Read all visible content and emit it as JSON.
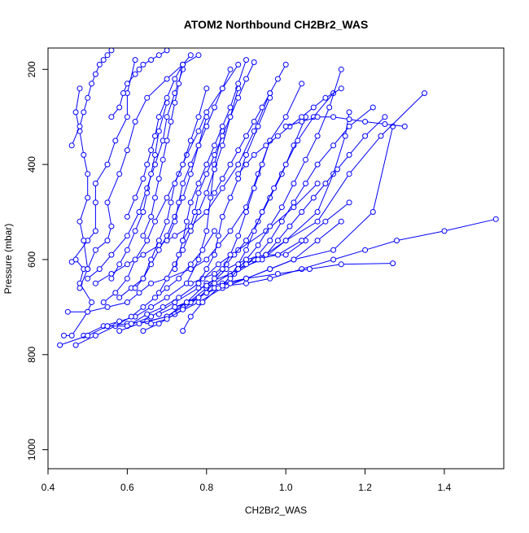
{
  "chart_data": {
    "type": "scatter",
    "title": "ATOM2 Northbound CH2Br2_WAS",
    "xlabel": "CH2Br2_WAS",
    "ylabel": "Pressure (mbar)",
    "xlim": [
      0.4,
      1.55
    ],
    "ylim": [
      1040,
      155
    ],
    "y_reversed": true,
    "x_ticks": [
      0.4,
      0.6,
      0.8,
      1.0,
      1.2,
      1.4
    ],
    "x_tick_labels": [
      "0.4",
      "0.6",
      "0.8",
      "1.0",
      "1.2",
      "1.4"
    ],
    "y_ticks": [
      200,
      400,
      600,
      800,
      1000
    ],
    "y_tick_labels": [
      "200",
      "400",
      "600",
      "800",
      "1000"
    ],
    "grid": false,
    "legend": "none",
    "series_color": "#0000ff",
    "marker": "open-circle",
    "connected": true,
    "series": [
      {
        "x": [
          0.44,
          0.46,
          0.5,
          0.51,
          0.48,
          0.49,
          0.47,
          0.46,
          0.5,
          0.52,
          0.52,
          0.52,
          0.55,
          0.57,
          0.6,
          0.6,
          0.62
        ],
        "y": [
          760,
          760,
          710,
          690,
          650,
          620,
          600,
          605,
          560,
          540,
          480,
          440,
          400,
          350,
          300,
          250,
          180
        ]
      },
      {
        "x": [
          0.45,
          0.5,
          0.55,
          0.6,
          0.63,
          0.66,
          0.7,
          0.76,
          0.8,
          0.83,
          0.86,
          0.9,
          0.93,
          0.96
        ],
        "y": [
          710,
          710,
          700,
          690,
          670,
          650,
          640,
          620,
          600,
          570,
          540,
          490,
          420,
          350
        ]
      },
      {
        "x": [
          0.49,
          0.54,
          0.58,
          0.62,
          0.66,
          0.7,
          0.75,
          0.78,
          0.8,
          0.81,
          0.82,
          0.84
        ],
        "y": [
          760,
          740,
          730,
          720,
          700,
          680,
          650,
          600,
          540,
          470,
          400,
          330
        ]
      },
      {
        "x": [
          0.43,
          0.5,
          0.55,
          0.6,
          0.65,
          0.7,
          0.74,
          0.8,
          0.85,
          0.9,
          0.95,
          1.0,
          1.05
        ],
        "y": [
          780,
          760,
          740,
          735,
          730,
          720,
          700,
          660,
          620,
          600,
          590,
          590,
          560
        ]
      },
      {
        "x": [
          0.47,
          0.52,
          0.57,
          0.61,
          0.64,
          0.67,
          0.7,
          0.73,
          0.76,
          0.79,
          0.82
        ],
        "y": [
          780,
          760,
          740,
          720,
          700,
          680,
          660,
          640,
          610,
          580,
          540
        ]
      },
      {
        "x": [
          0.55,
          0.6,
          0.66,
          0.72,
          0.78,
          0.84,
          0.9,
          0.96,
          1.02,
          1.08,
          1.14
        ],
        "y": [
          740,
          740,
          720,
          690,
          660,
          650,
          640,
          620,
          600,
          560,
          520
        ]
      },
      {
        "x": [
          0.58,
          0.63,
          0.7,
          0.75,
          0.8,
          0.86,
          0.92,
          0.98,
          1.04,
          1.1,
          1.16
        ],
        "y": [
          750,
          735,
          720,
          690,
          650,
          630,
          600,
          590,
          560,
          520,
          480
        ]
      },
      {
        "x": [
          0.61,
          0.65,
          0.69,
          0.73,
          0.78,
          0.83,
          0.88,
          0.95,
          1.02,
          1.08
        ],
        "y": [
          735,
          715,
          700,
          680,
          650,
          610,
          580,
          540,
          490,
          440
        ]
      },
      {
        "x": [
          0.64,
          0.68,
          0.72,
          0.78,
          0.84,
          0.9,
          0.96,
          1.02,
          1.12,
          1.22,
          1.27
        ],
        "y": [
          750,
          735,
          715,
          690,
          660,
          640,
          620,
          600,
          580,
          500,
          320
        ]
      },
      {
        "x": [
          0.66,
          0.7,
          0.74,
          0.78,
          0.82,
          0.88,
          0.94,
          1.0,
          1.08,
          1.16,
          1.24,
          1.35
        ],
        "y": [
          735,
          725,
          705,
          680,
          650,
          620,
          600,
          560,
          520,
          420,
          340,
          250
        ]
      },
      {
        "x": [
          0.68,
          0.72,
          0.76,
          0.8,
          0.85,
          0.9,
          0.96,
          1.04,
          1.12,
          1.2,
          1.28,
          1.4,
          1.53
        ],
        "y": [
          715,
          700,
          690,
          670,
          655,
          650,
          640,
          620,
          600,
          580,
          560,
          540,
          515
        ]
      },
      {
        "x": [
          0.72,
          0.75,
          0.78,
          0.8,
          0.82,
          0.86,
          0.9,
          0.98,
          1.06,
          1.14,
          1.27
        ],
        "y": [
          700,
          690,
          680,
          670,
          660,
          650,
          640,
          630,
          620,
          610,
          608
        ]
      },
      {
        "x": [
          0.74,
          0.76,
          0.79,
          0.83,
          0.87,
          0.93,
          1.0,
          1.08,
          1.12,
          1.15,
          1.16
        ],
        "y": [
          750,
          720,
          690,
          660,
          630,
          600,
          560,
          500,
          420,
          340,
          290
        ]
      },
      {
        "x": [
          0.76,
          0.79,
          0.82,
          0.85,
          0.87,
          0.9,
          0.93,
          0.96,
          0.99,
          1.02,
          1.05
        ],
        "y": [
          650,
          640,
          630,
          610,
          590,
          560,
          520,
          470,
          420,
          360,
          300
        ]
      },
      {
        "x": [
          0.52,
          0.56,
          0.6,
          0.64,
          0.68,
          0.72,
          0.76,
          0.8,
          0.84,
          0.88,
          0.92,
          0.96
        ],
        "y": [
          650,
          630,
          610,
          590,
          570,
          550,
          530,
          500,
          450,
          400,
          330,
          250
        ]
      },
      {
        "x": [
          0.54,
          0.57,
          0.6,
          0.62,
          0.65,
          0.67,
          0.7,
          0.73,
          0.75,
          0.78,
          0.8,
          0.84,
          0.88
        ],
        "y": [
          690,
          670,
          640,
          600,
          560,
          520,
          470,
          420,
          380,
          330,
          290,
          240,
          190
        ]
      },
      {
        "x": [
          0.5,
          0.53,
          0.56,
          0.6,
          0.63,
          0.65,
          0.67,
          0.69,
          0.7,
          0.72,
          0.74
        ],
        "y": [
          640,
          620,
          590,
          550,
          500,
          450,
          400,
          350,
          300,
          250,
          200
        ]
      },
      {
        "x": [
          0.56,
          0.58,
          0.6,
          0.62,
          0.64,
          0.65,
          0.66,
          0.67,
          0.68,
          0.7
        ],
        "y": [
          640,
          610,
          580,
          540,
          500,
          460,
          420,
          380,
          330,
          270
        ]
      },
      {
        "x": [
          0.58,
          0.61,
          0.64,
          0.66,
          0.68,
          0.7,
          0.72,
          0.74,
          0.76,
          0.78,
          0.8
        ],
        "y": [
          680,
          660,
          640,
          610,
          580,
          550,
          510,
          470,
          420,
          360,
          300
        ]
      },
      {
        "x": [
          0.48,
          0.5,
          0.49,
          0.48,
          0.5,
          0.5,
          0.49,
          0.48,
          0.47,
          0.48
        ],
        "y": [
          660,
          620,
          560,
          520,
          470,
          420,
          380,
          330,
          290,
          240
        ]
      },
      {
        "x": [
          0.5,
          0.52,
          0.55,
          0.56,
          0.55,
          0.58,
          0.6,
          0.62,
          0.65,
          0.7,
          0.74,
          0.78
        ],
        "y": [
          620,
          580,
          560,
          530,
          480,
          420,
          370,
          310,
          260,
          220,
          190,
          170
        ]
      },
      {
        "x": [
          0.62,
          0.64,
          0.66,
          0.68,
          0.7,
          0.71,
          0.72,
          0.74,
          0.76,
          0.78,
          0.8
        ],
        "y": [
          660,
          640,
          600,
          560,
          520,
          480,
          440,
          400,
          350,
          300,
          240
        ]
      },
      {
        "x": [
          0.68,
          0.7,
          0.72,
          0.74,
          0.76,
          0.78,
          0.8,
          0.82,
          0.84,
          0.86,
          0.88
        ],
        "y": [
          670,
          640,
          610,
          580,
          540,
          500,
          460,
          410,
          360,
          300,
          240
        ]
      },
      {
        "x": [
          0.72,
          0.73,
          0.74,
          0.75,
          0.76,
          0.78,
          0.8,
          0.82,
          0.84,
          0.86,
          0.88,
          0.9
        ],
        "y": [
          620,
          590,
          560,
          520,
          480,
          440,
          400,
          360,
          320,
          280,
          230,
          180
        ]
      },
      {
        "x": [
          0.78,
          0.8,
          0.82,
          0.83,
          0.84,
          0.86,
          0.88,
          0.9,
          0.93,
          0.96
        ],
        "y": [
          650,
          620,
          590,
          550,
          510,
          470,
          430,
          380,
          320,
          260
        ]
      },
      {
        "x": [
          0.8,
          0.82,
          0.84,
          0.86,
          0.88,
          0.9,
          0.92,
          0.94,
          0.96,
          1.0,
          1.04
        ],
        "y": [
          655,
          640,
          620,
          590,
          550,
          500,
          450,
          400,
          350,
          300,
          230
        ]
      },
      {
        "x": [
          0.84,
          0.86,
          0.88,
          0.9,
          0.92,
          0.94,
          0.97,
          1.0,
          1.03,
          1.07,
          1.12
        ],
        "y": [
          655,
          635,
          610,
          580,
          540,
          500,
          450,
          400,
          350,
          300,
          250
        ]
      },
      {
        "x": [
          0.86,
          0.88,
          0.9,
          0.93,
          0.96,
          0.99,
          1.02,
          1.05,
          1.08,
          1.11,
          1.14
        ],
        "y": [
          640,
          620,
          600,
          570,
          530,
          490,
          440,
          390,
          340,
          280,
          200
        ]
      },
      {
        "x": [
          0.9,
          0.93,
          0.96,
          0.99,
          1.02,
          1.05,
          1.08,
          1.12,
          1.16,
          1.22
        ],
        "y": [
          610,
          590,
          560,
          520,
          480,
          440,
          400,
          360,
          320,
          280
        ]
      },
      {
        "x": [
          0.95,
          0.98,
          1.01,
          1.04,
          1.07,
          1.1,
          1.13,
          1.16,
          1.2,
          1.25
        ],
        "y": [
          590,
          560,
          530,
          500,
          470,
          440,
          410,
          380,
          340,
          300
        ]
      },
      {
        "x": [
          0.6,
          0.62,
          0.64,
          0.65,
          0.66,
          0.67,
          0.68,
          0.7,
          0.72,
          0.74,
          0.76
        ],
        "y": [
          510,
          470,
          430,
          400,
          370,
          340,
          300,
          260,
          220,
          190,
          170
        ]
      },
      {
        "x": [
          0.64,
          0.66,
          0.67,
          0.68,
          0.69,
          0.7,
          0.71,
          0.72,
          0.73,
          0.74
        ],
        "y": [
          550,
          510,
          470,
          430,
          390,
          350,
          310,
          270,
          230,
          190
        ]
      },
      {
        "x": [
          0.7,
          0.72,
          0.73,
          0.74,
          0.76,
          0.78,
          0.8,
          0.82,
          0.84,
          0.86
        ],
        "y": [
          560,
          520,
          480,
          440,
          400,
          360,
          320,
          280,
          240,
          200
        ]
      },
      {
        "x": [
          0.74,
          0.76,
          0.77,
          0.78,
          0.8,
          0.82,
          0.84,
          0.86,
          0.88,
          0.9,
          0.92
        ],
        "y": [
          560,
          530,
          500,
          460,
          420,
          380,
          340,
          300,
          260,
          220,
          185
        ]
      },
      {
        "x": [
          0.82,
          0.84,
          0.86,
          0.88,
          0.9,
          0.92,
          0.94,
          0.96,
          0.98,
          1.0
        ],
        "y": [
          460,
          430,
          400,
          370,
          340,
          310,
          280,
          250,
          220,
          190
        ]
      },
      {
        "x": [
          0.88,
          0.9,
          0.92,
          0.95,
          0.98,
          1.01,
          1.04,
          1.07,
          1.1,
          1.14
        ],
        "y": [
          420,
          400,
          380,
          360,
          340,
          320,
          300,
          280,
          260,
          240
        ]
      },
      {
        "x": [
          0.46,
          0.48,
          0.49,
          0.5,
          0.51,
          0.52,
          0.53,
          0.54,
          0.55,
          0.56
        ],
        "y": [
          360,
          320,
          290,
          260,
          230,
          210,
          190,
          180,
          170,
          160
        ]
      },
      {
        "x": [
          0.56,
          0.58,
          0.59,
          0.6,
          0.62,
          0.63,
          0.64,
          0.66,
          0.68,
          0.7
        ],
        "y": [
          300,
          280,
          250,
          230,
          210,
          200,
          190,
          180,
          170,
          160
        ]
      },
      {
        "x": [
          1.0,
          1.04,
          1.08,
          1.12,
          1.16,
          1.2,
          1.25,
          1.3
        ],
        "y": [
          320,
          310,
          300,
          300,
          305,
          310,
          315,
          320
        ]
      }
    ]
  }
}
